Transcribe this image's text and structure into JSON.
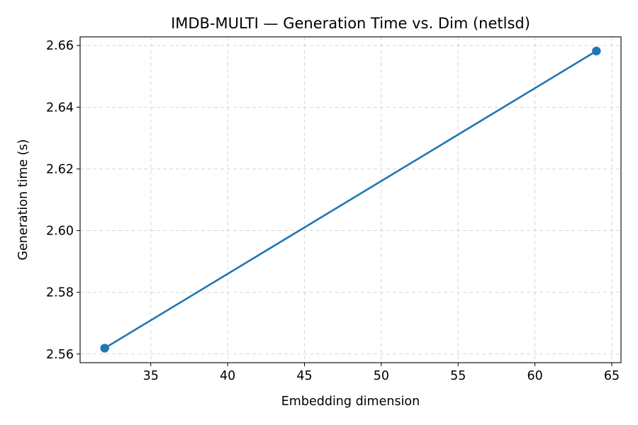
{
  "chart_data": {
    "type": "line",
    "title": "IMDB-MULTI — Generation Time vs. Dim (netlsd)",
    "xlabel": "Embedding dimension",
    "ylabel": "Generation time (s)",
    "xlim": [
      30.4,
      65.6
    ],
    "ylim": [
      2.5572,
      2.6628
    ],
    "xticks": [
      35,
      40,
      45,
      50,
      55,
      60,
      65
    ],
    "yticks": [
      2.56,
      2.58,
      2.6,
      2.62,
      2.64,
      2.66
    ],
    "ytick_labels": [
      "2.56",
      "2.58",
      "2.60",
      "2.62",
      "2.64",
      "2.66"
    ],
    "grid": true,
    "series": [
      {
        "x": [
          32,
          64
        ],
        "y": [
          2.5619,
          2.6582
        ],
        "color": "#1f77b4",
        "marker": "circle"
      }
    ]
  }
}
